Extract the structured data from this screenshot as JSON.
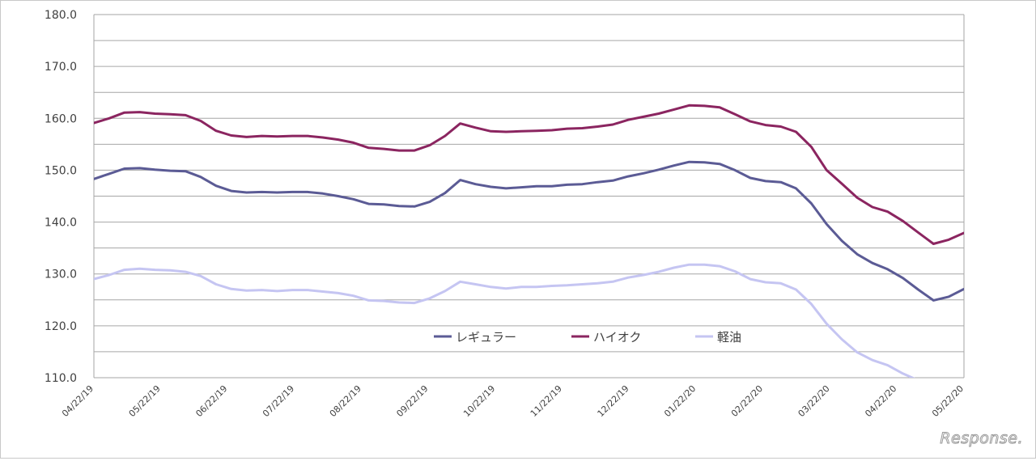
{
  "chart_data": {
    "type": "line",
    "title": "",
    "xlabel": "",
    "ylabel": "",
    "ylim": [
      110,
      180
    ],
    "y_ticks": [
      "110.0",
      "120.0",
      "130.0",
      "140.0",
      "150.0",
      "160.0",
      "170.0",
      "180.0"
    ],
    "x_tick_labels": [
      "04/22/19",
      "05/22/19",
      "06/22/19",
      "07/22/19",
      "08/22/19",
      "09/22/19",
      "10/22/19",
      "11/22/19",
      "12/22/19",
      "01/22/20",
      "02/22/20",
      "03/22/20",
      "04/22/20",
      "05/22/20"
    ],
    "grid": "horizontal",
    "legend_position": "inside-lower-middle",
    "series": [
      {
        "name": "レギュラー",
        "color": "#5b5b95",
        "values": [
          148.3,
          149.3,
          150.3,
          150.4,
          150.1,
          149.9,
          149.8,
          148.7,
          147.0,
          146.0,
          145.7,
          145.8,
          145.7,
          145.8,
          145.8,
          145.5,
          145.0,
          144.4,
          143.5,
          143.4,
          143.1,
          143.0,
          143.9,
          145.6,
          148.1,
          147.3,
          146.8,
          146.5,
          146.7,
          146.9,
          146.9,
          147.2,
          147.3,
          147.7,
          148.0,
          148.8,
          149.4,
          150.1,
          150.9,
          151.6,
          151.5,
          151.2,
          150.0,
          148.5,
          147.9,
          147.7,
          146.5,
          143.6,
          139.6,
          136.4,
          133.8,
          132.1,
          130.9,
          129.2,
          127.0,
          124.9,
          125.6,
          127.1
        ]
      },
      {
        "name": "ハイオク",
        "color": "#8b2560",
        "values": [
          159.1,
          160.0,
          161.1,
          161.2,
          160.9,
          160.8,
          160.6,
          159.5,
          157.6,
          156.7,
          156.4,
          156.6,
          156.5,
          156.6,
          156.6,
          156.3,
          155.9,
          155.3,
          154.3,
          154.1,
          153.8,
          153.8,
          154.8,
          156.6,
          159.0,
          158.2,
          157.5,
          157.4,
          157.5,
          157.6,
          157.7,
          158.0,
          158.1,
          158.4,
          158.8,
          159.7,
          160.3,
          160.9,
          161.7,
          162.5,
          162.4,
          162.1,
          160.8,
          159.4,
          158.7,
          158.4,
          157.4,
          154.5,
          150.0,
          147.4,
          144.7,
          142.9,
          142.0,
          140.2,
          138.0,
          135.8,
          136.6,
          137.9
        ]
      },
      {
        "name": "軽油",
        "color": "#c5c5f2",
        "values": [
          129.0,
          129.8,
          130.8,
          131.0,
          130.8,
          130.7,
          130.4,
          129.6,
          128.0,
          127.1,
          126.8,
          126.9,
          126.7,
          126.9,
          126.9,
          126.6,
          126.3,
          125.8,
          124.9,
          124.8,
          124.5,
          124.4,
          125.3,
          126.7,
          128.5,
          128.0,
          127.5,
          127.2,
          127.5,
          127.5,
          127.7,
          127.8,
          128.0,
          128.2,
          128.5,
          129.3,
          129.8,
          130.4,
          131.2,
          131.8,
          131.8,
          131.5,
          130.5,
          129.0,
          128.4,
          128.2,
          127.0,
          124.2,
          120.4,
          117.4,
          114.9,
          113.4,
          112.4,
          110.8,
          109.5,
          108.2,
          107.9,
          107.6
        ]
      }
    ]
  },
  "watermark": {
    "text": "Response."
  }
}
